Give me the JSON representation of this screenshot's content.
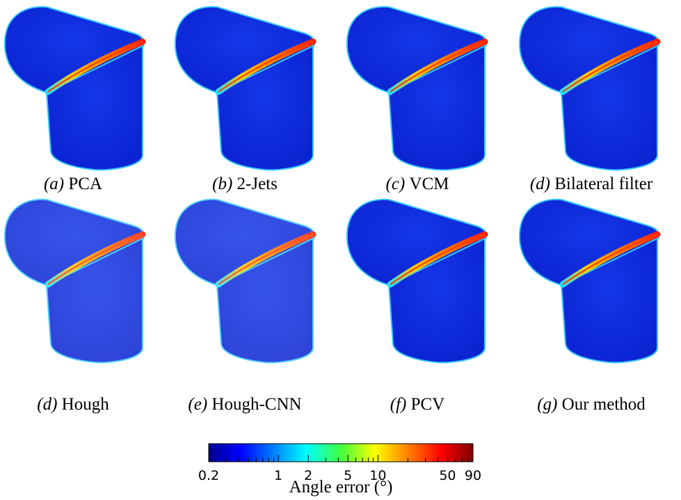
{
  "panels": [
    {
      "tag": "(a)",
      "label": "PCA"
    },
    {
      "tag": "(b)",
      "label": "2-Jets"
    },
    {
      "tag": "(c)",
      "label": "VCM"
    },
    {
      "tag": "(d)",
      "label": "Bilateral filter"
    },
    {
      "tag": "(d)",
      "label": "Hough"
    },
    {
      "tag": "(e)",
      "label": "Hough-CNN"
    },
    {
      "tag": "(f)",
      "label": "PCV"
    },
    {
      "tag": "(g)",
      "label": "Our method"
    }
  ],
  "colorbar": {
    "label": "Angle error (°)",
    "log": true,
    "lim": [
      0.2,
      90
    ],
    "ticks": [
      0.2,
      1,
      2,
      5,
      10,
      50,
      90
    ],
    "minor_ticks": [
      0.3,
      0.4,
      0.5,
      0.6,
      0.7,
      0.8,
      0.9,
      3,
      4,
      6,
      7,
      8,
      9,
      20,
      30,
      40,
      60,
      70,
      80
    ]
  }
}
